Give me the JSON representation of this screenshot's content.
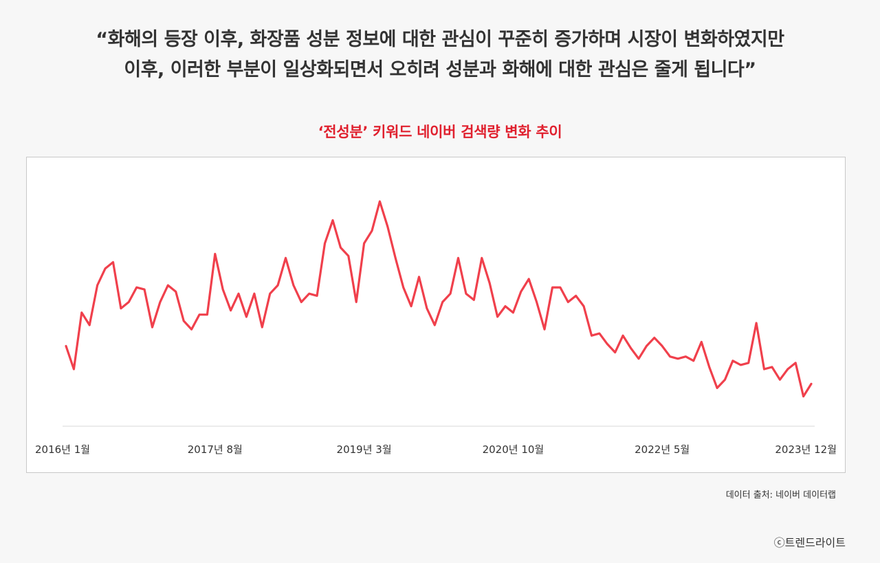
{
  "header": {
    "quote_line1": "“화해의 등장 이후, 화장품 성분 정보에 대한 관심이 꾸준히 증가하며 시장이 변화하였지만",
    "quote_line2": "이후, 이러한 부분이 일상화되면서 오히려 성분과 화해에 대한 관심은 줄게 됩니다”"
  },
  "footer": {
    "source": "데이터 출처: 네이버 데이터랩",
    "copyright": "ⓒ트렌드라이트"
  },
  "colors": {
    "line": "#f0404c",
    "title": "#e0202e",
    "text": "#333333"
  },
  "chart_data": {
    "type": "line",
    "title": "‘전성분’ 키워드 네이버 검색량 변화 추이",
    "xlabel": "",
    "ylabel": "",
    "ylim": [
      0,
      100
    ],
    "grid": false,
    "legend": "none",
    "x_tick_labels": [
      "2016년 1월",
      "2017년 8월",
      "2019년 3월",
      "2020년 10월",
      "2022년 5월",
      "2023년 12월"
    ],
    "x_tick_index": [
      0,
      19,
      38,
      57,
      76,
      95
    ],
    "series": [
      {
        "values": [
          31,
          20,
          47,
          41,
          60,
          68,
          71,
          49,
          52,
          59,
          58,
          40,
          52,
          60,
          57,
          43,
          39,
          46,
          46,
          75,
          58,
          48,
          56,
          45,
          56,
          40,
          56,
          60,
          73,
          60,
          52,
          56,
          55,
          80,
          91,
          78,
          74,
          52,
          80,
          86,
          100,
          88,
          73,
          59,
          50,
          64,
          49,
          41,
          52,
          56,
          73,
          56,
          53,
          73,
          61,
          45,
          50,
          47,
          57,
          63,
          52,
          39,
          59,
          59,
          52,
          55,
          50,
          36,
          37,
          32,
          28,
          36,
          30,
          25,
          31,
          35,
          31,
          26,
          25,
          26,
          24,
          33,
          21,
          11,
          15,
          24,
          22,
          23,
          42,
          20,
          21,
          15,
          20,
          23,
          7,
          13
        ]
      }
    ]
  }
}
